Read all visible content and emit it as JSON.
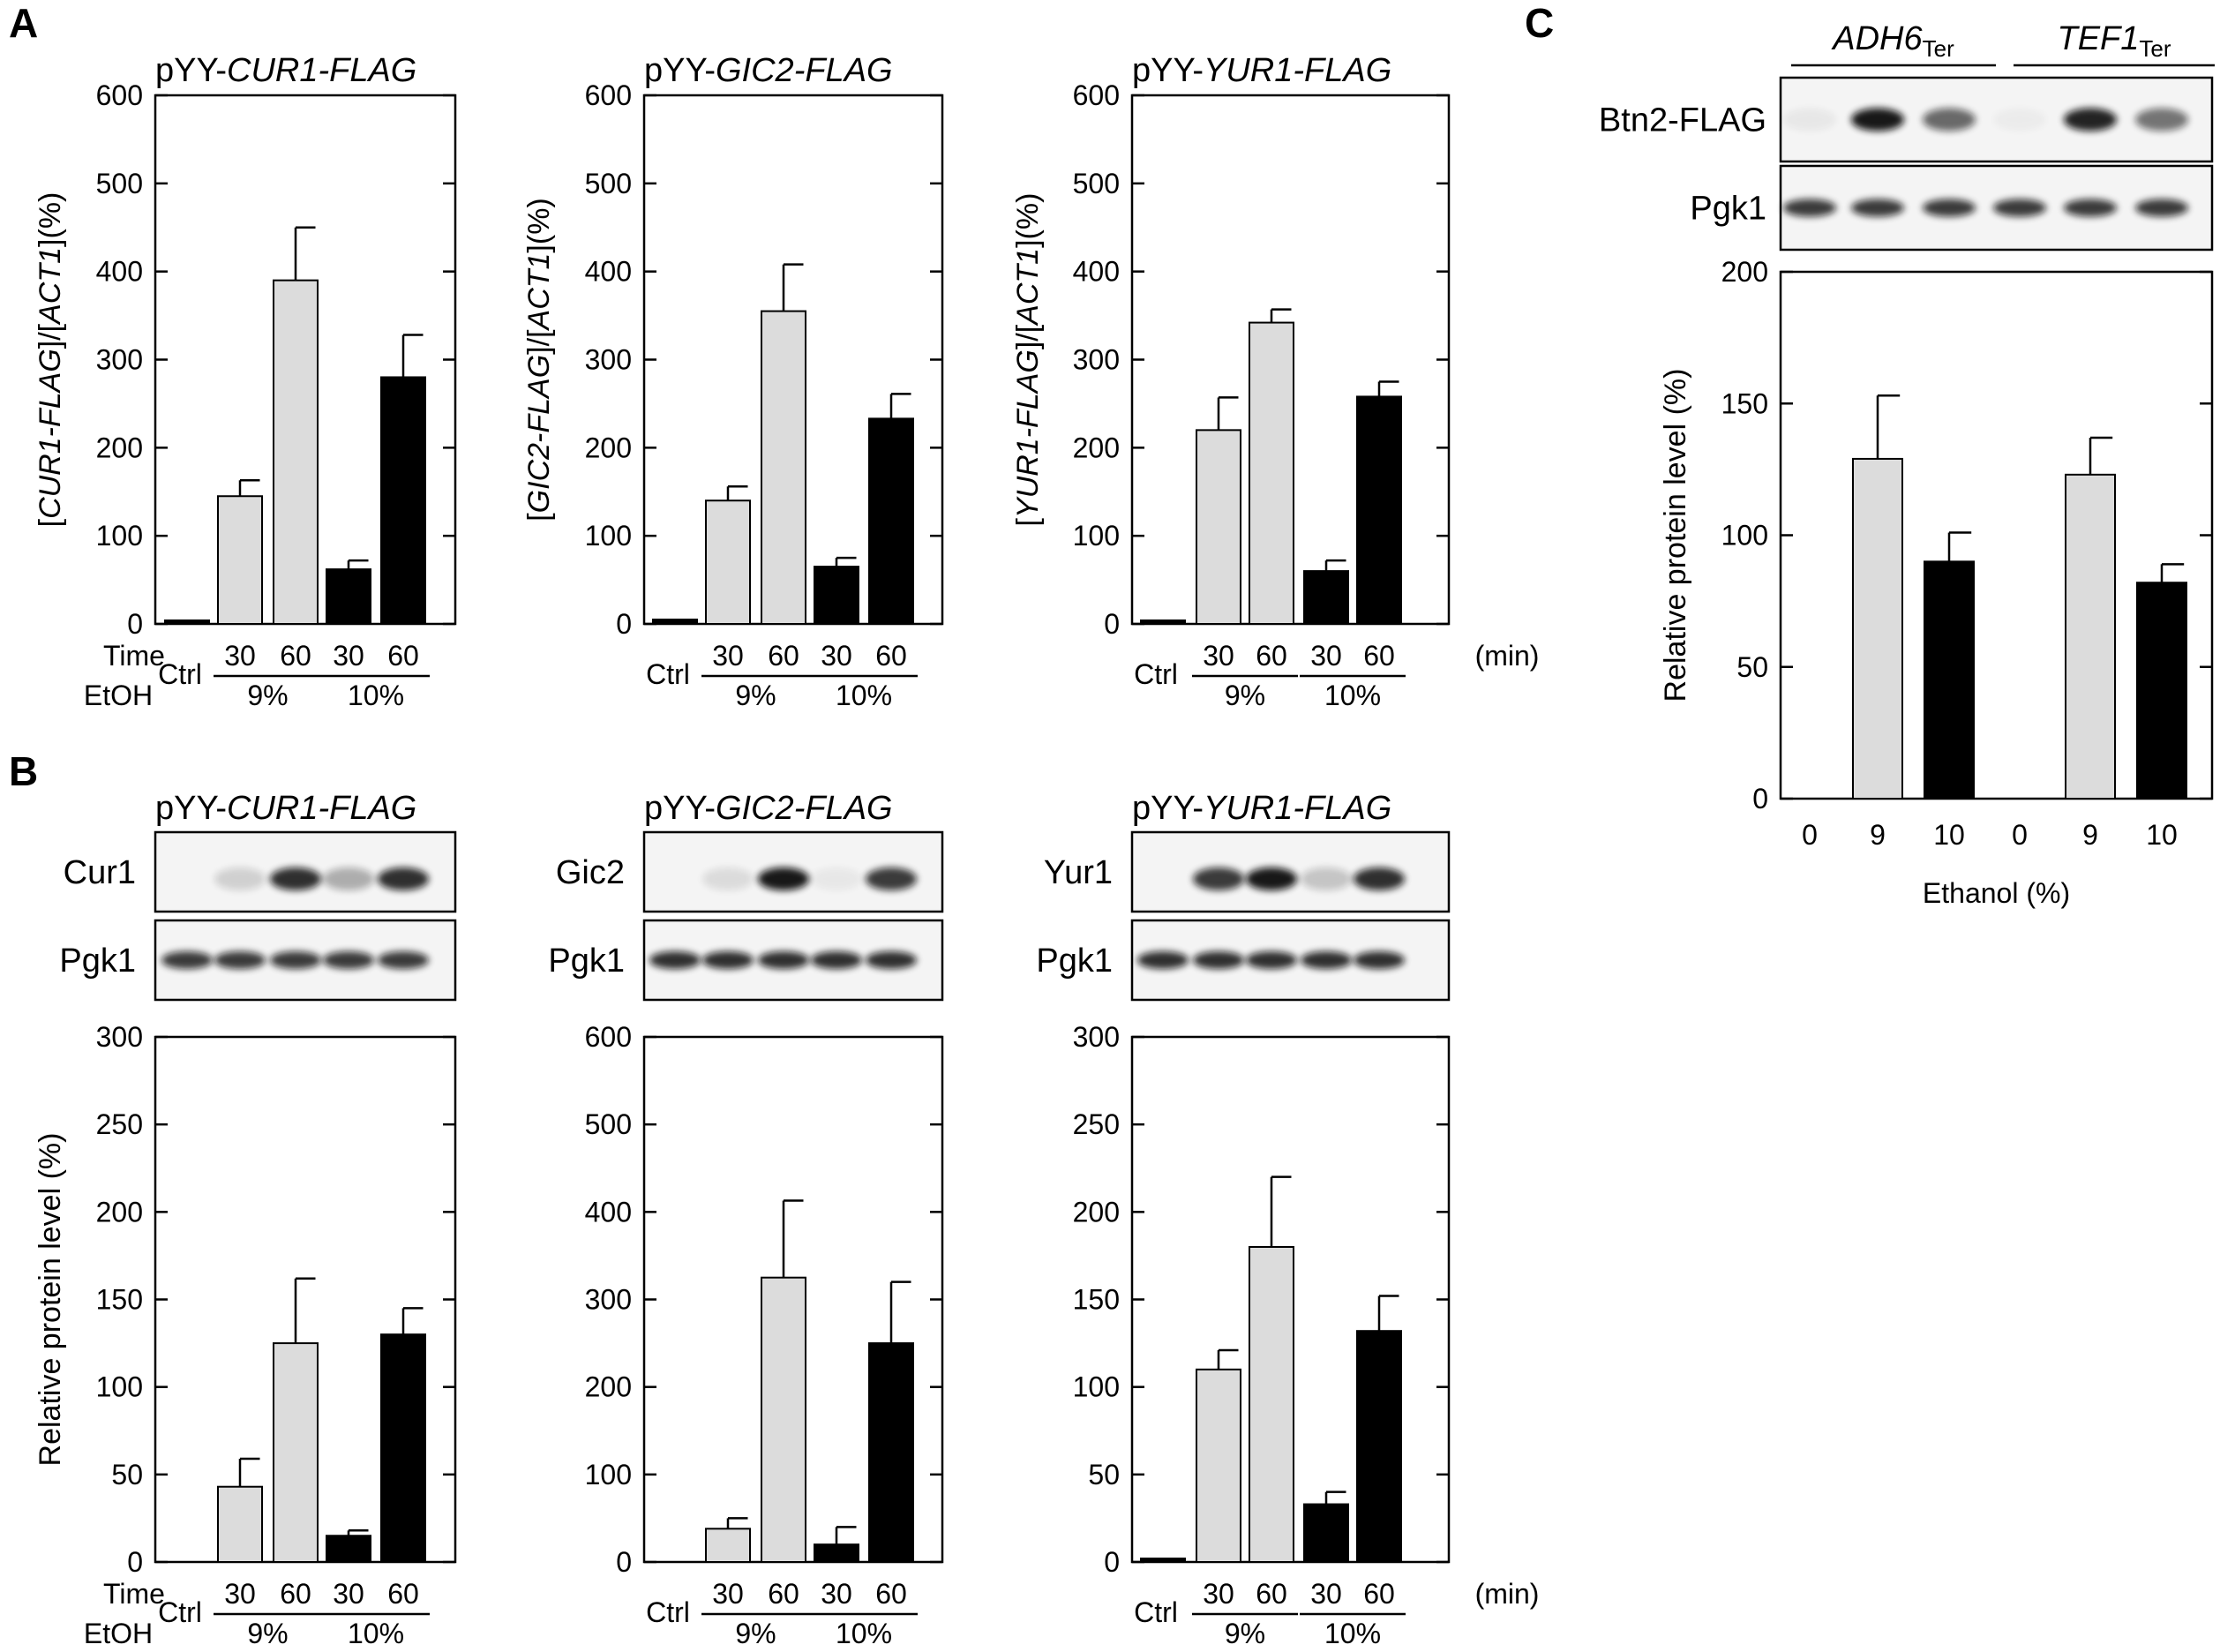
{
  "colors": {
    "light_bar": "#dcdcdc",
    "dark_bar": "#000000",
    "axis": "#000000",
    "blot_bg": "#f4f4f4"
  },
  "panels": {
    "A": "A",
    "B": "B",
    "C": "C"
  },
  "chart_data": [
    {
      "id": "A1",
      "panel": "A",
      "type": "bar",
      "title_prefix": "pYY-",
      "title_gene": "CUR1-FLAG",
      "ylabel_parts": [
        "[",
        "CUR1-FLAG",
        "]/[",
        "ACT1",
        "](%)"
      ],
      "ylim": [
        0,
        600
      ],
      "yticks": [
        0,
        100,
        200,
        300,
        400,
        500,
        600
      ],
      "categories": [
        "Ctrl",
        "30",
        "60",
        "30",
        "60"
      ],
      "values": [
        4,
        145,
        390,
        62,
        280
      ],
      "errors": [
        0,
        18,
        60,
        10,
        48
      ],
      "bar_colors": [
        "dark",
        "light",
        "light",
        "dark",
        "dark"
      ],
      "groups": [
        "9%",
        "10%"
      ],
      "row_labels": [
        "Time",
        "EtOH"
      ],
      "unit": ""
    },
    {
      "id": "A2",
      "panel": "A",
      "type": "bar",
      "title_prefix": "pYY-",
      "title_gene": "GIC2-FLAG",
      "ylabel_parts": [
        "[",
        "GIC2-FLAG",
        "]/[",
        "ACT1",
        "](%)"
      ],
      "ylim": [
        0,
        600
      ],
      "yticks": [
        0,
        100,
        200,
        300,
        400,
        500,
        600
      ],
      "categories": [
        "Ctrl",
        "30",
        "60",
        "30",
        "60"
      ],
      "values": [
        5,
        140,
        355,
        65,
        233
      ],
      "errors": [
        0,
        16,
        53,
        10,
        28
      ],
      "bar_colors": [
        "dark",
        "light",
        "light",
        "dark",
        "dark"
      ],
      "groups": [
        "9%",
        "10%"
      ],
      "row_labels": [],
      "unit": ""
    },
    {
      "id": "A3",
      "panel": "A",
      "type": "bar",
      "title_prefix": "pYY-",
      "title_gene": "YUR1-FLAG",
      "ylabel_parts": [
        "[",
        "YUR1-FLAG",
        "]/[",
        "ACT1",
        "](%)"
      ],
      "ylim": [
        0,
        600
      ],
      "yticks": [
        0,
        100,
        200,
        300,
        400,
        500,
        600
      ],
      "categories": [
        "Ctrl",
        "30",
        "60",
        "30",
        "60"
      ],
      "values": [
        4,
        220,
        342,
        60,
        258
      ],
      "errors": [
        0,
        37,
        15,
        12,
        17
      ],
      "bar_colors": [
        "dark",
        "light",
        "light",
        "dark",
        "dark"
      ],
      "groups": [
        "9%",
        "10%"
      ],
      "row_labels": [],
      "unit": "(min)"
    },
    {
      "id": "B1",
      "panel": "B",
      "type": "bar",
      "title_prefix": "pYY-",
      "title_gene": "CUR1-FLAG",
      "ylabel": "Relative protein level (%)",
      "ylim": [
        0,
        300
      ],
      "yticks": [
        0,
        50,
        100,
        150,
        200,
        250,
        300
      ],
      "categories": [
        "Ctrl",
        "30",
        "60",
        "30",
        "60"
      ],
      "values": [
        0,
        43,
        125,
        15,
        130
      ],
      "errors": [
        0,
        16,
        37,
        3,
        15
      ],
      "bar_colors": [
        "dark",
        "light",
        "light",
        "dark",
        "dark"
      ],
      "groups": [
        "9%",
        "10%"
      ],
      "row_labels": [
        "Time",
        "EtOH"
      ],
      "unit": "",
      "blots": [
        {
          "label": "Cur1",
          "bands": [
            0,
            0.15,
            0.85,
            0.3,
            0.85
          ]
        },
        {
          "label": "Pgk1",
          "bands": [
            0.8,
            0.8,
            0.8,
            0.8,
            0.8
          ]
        }
      ]
    },
    {
      "id": "B2",
      "panel": "B",
      "type": "bar",
      "title_prefix": "pYY-",
      "title_gene": "GIC2-FLAG",
      "ylabel": "",
      "ylim": [
        0,
        600
      ],
      "yticks": [
        0,
        100,
        200,
        300,
        400,
        500,
        600
      ],
      "categories": [
        "Ctrl",
        "30",
        "60",
        "30",
        "60"
      ],
      "values": [
        0,
        38,
        325,
        20,
        250
      ],
      "errors": [
        0,
        12,
        88,
        20,
        70
      ],
      "bar_colors": [
        "dark",
        "light",
        "light",
        "dark",
        "dark"
      ],
      "groups": [
        "9%",
        "10%"
      ],
      "row_labels": [],
      "unit": "",
      "blots": [
        {
          "label": "Gic2",
          "bands": [
            0,
            0.1,
            0.95,
            0.05,
            0.8
          ]
        },
        {
          "label": "Pgk1",
          "bands": [
            0.85,
            0.85,
            0.85,
            0.85,
            0.85
          ]
        }
      ]
    },
    {
      "id": "B3",
      "panel": "B",
      "type": "bar",
      "title_prefix": "pYY-",
      "title_gene": "YUR1-FLAG",
      "ylabel": "",
      "ylim": [
        0,
        300
      ],
      "yticks": [
        0,
        50,
        100,
        150,
        200,
        250,
        300
      ],
      "categories": [
        "Ctrl",
        "30",
        "60",
        "30",
        "60"
      ],
      "values": [
        2,
        110,
        180,
        33,
        132
      ],
      "errors": [
        0,
        11,
        40,
        7,
        20
      ],
      "bar_colors": [
        "dark",
        "light",
        "light",
        "dark",
        "dark"
      ],
      "groups": [
        "9%",
        "10%"
      ],
      "row_labels": [],
      "unit": "(min)",
      "blots": [
        {
          "label": "Yur1",
          "bands": [
            0,
            0.8,
            0.95,
            0.2,
            0.85
          ]
        },
        {
          "label": "Pgk1",
          "bands": [
            0.85,
            0.85,
            0.85,
            0.85,
            0.85
          ]
        }
      ]
    },
    {
      "id": "C1",
      "panel": "C",
      "type": "bar",
      "terminators": [
        {
          "gene": "ADH6",
          "sub": "Ter"
        },
        {
          "gene": "TEF1",
          "sub": "Ter"
        }
      ],
      "ylabel": "Relative protein level (%)",
      "xlabel": "Ethanol (%)",
      "ylim": [
        0,
        200
      ],
      "yticks": [
        0,
        50,
        100,
        150,
        200
      ],
      "categories": [
        "0",
        "9",
        "10",
        "0",
        "9",
        "10"
      ],
      "values": [
        0,
        129,
        90,
        0,
        123,
        82
      ],
      "errors": [
        0,
        24,
        11,
        0,
        14,
        7
      ],
      "bar_colors": [
        "dark",
        "light",
        "dark",
        "dark",
        "light",
        "dark"
      ],
      "blots": [
        {
          "label": "Btn2-FLAG",
          "bands": [
            0.05,
            0.95,
            0.6,
            0.03,
            0.9,
            0.55
          ]
        },
        {
          "label": "Pgk1",
          "bands": [
            0.8,
            0.8,
            0.8,
            0.8,
            0.8,
            0.8
          ]
        }
      ]
    }
  ]
}
